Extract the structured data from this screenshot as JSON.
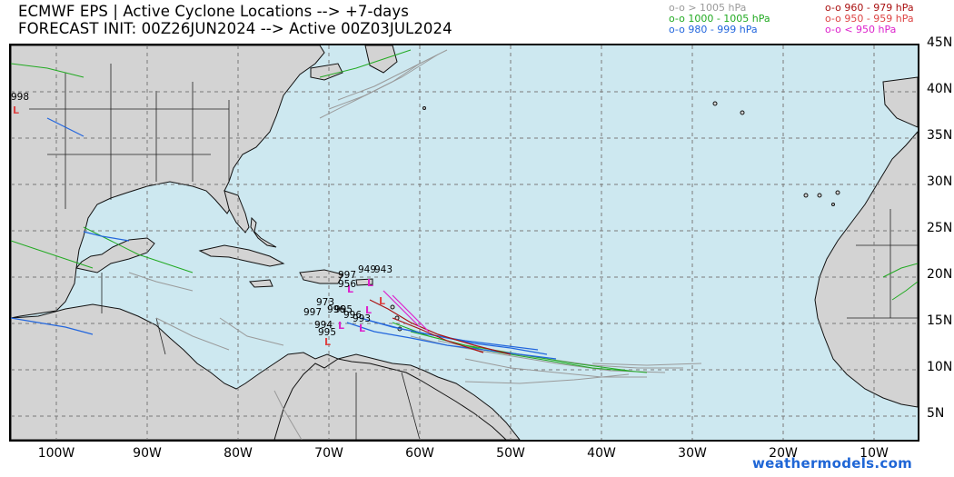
{
  "header": {
    "title_line1": "ECMWF EPS | Active Cyclone Locations --> +7-days",
    "title_line2": "FORECAST INIT: 00Z26JUN2024 --> Active 00Z03JUL2024"
  },
  "legend": {
    "left": [
      {
        "text": "o-o > 1005 hPa",
        "color": "#9a9a9a"
      },
      {
        "text": "o-o 1000 - 1005 hPa",
        "color": "#22aa22"
      },
      {
        "text": "o-o 980 - 999 hPa",
        "color": "#2266dd"
      }
    ],
    "right": [
      {
        "text": "o-o 960 - 979 hPa",
        "color": "#aa1111"
      },
      {
        "text": "o-o 950 - 959 hPa",
        "color": "#dd4444"
      },
      {
        "text": "o-o < 950 hPa",
        "color": "#dd22cc"
      }
    ]
  },
  "map": {
    "ocean_color": "#cde8f0",
    "land_color": "#d3d3d3",
    "lat_labels": [
      "45N",
      "40N",
      "35N",
      "30N",
      "25N",
      "20N",
      "15N",
      "10N",
      "5N"
    ],
    "lon_labels": [
      "100W",
      "90W",
      "80W",
      "70W",
      "60W",
      "50W",
      "40W",
      "30W",
      "20W",
      "10W"
    ],
    "pressure_labels": [
      "998",
      "997",
      "956",
      "949",
      "943",
      "973",
      "997",
      "995",
      "996",
      "996",
      "994",
      "995",
      "993"
    ]
  },
  "credit": "weathermodels.com"
}
